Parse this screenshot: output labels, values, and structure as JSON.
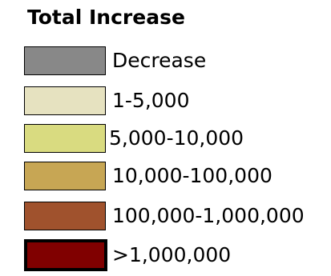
{
  "legend": {
    "title": "Total Increase",
    "items": [
      {
        "label": "Decrease",
        "color": "#888888"
      },
      {
        "label": "1-5,000",
        "color": "#e6e2c0"
      },
      {
        "label": "5,000-10,000",
        "color": "#d9db80"
      },
      {
        "label": "10,000-100,000",
        "color": "#c7a654"
      },
      {
        "label": "100,000-1,000,000",
        "color": "#a0522d"
      },
      {
        "label": ">1,000,000",
        "color": "#800000"
      }
    ]
  }
}
